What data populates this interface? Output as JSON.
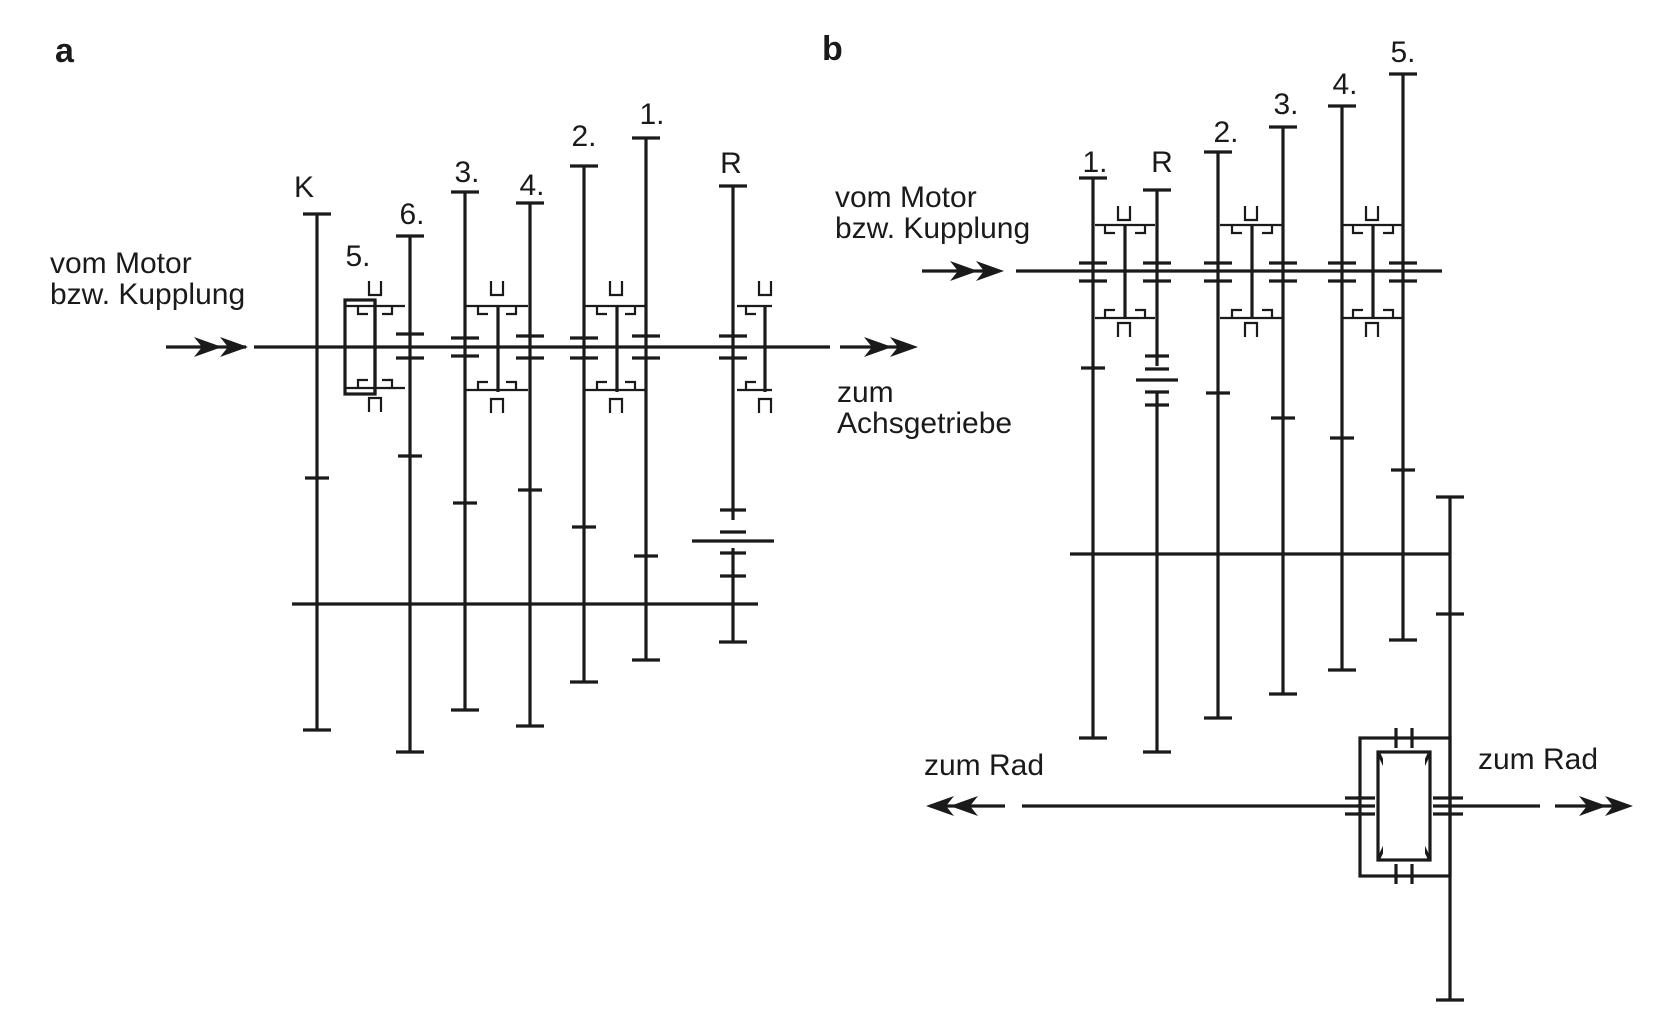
{
  "panel_a": {
    "label": "a",
    "gear_labels": {
      "k": "K",
      "g5": "5.",
      "g6": "6.",
      "g3": "3.",
      "g4": "4.",
      "g2": "2.",
      "g1": "1.",
      "r": "R"
    },
    "input_line1": "vom Motor",
    "input_line2": "bzw. Kupplung",
    "output_line1": "zum",
    "output_line2": "Achsgetriebe"
  },
  "panel_b": {
    "label": "b",
    "gear_labels": {
      "g1": "1.",
      "r": "R",
      "g2": "2.",
      "g3": "3.",
      "g4": "4.",
      "g5": "5."
    },
    "input_line1": "vom Motor",
    "input_line2": "bzw. Kupplung",
    "wheel_left": "zum Rad",
    "wheel_right": "zum Rad"
  }
}
